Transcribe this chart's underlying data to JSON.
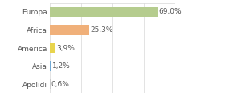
{
  "categories": [
    "Europa",
    "Africa",
    "America",
    "Asia",
    "Apolidi"
  ],
  "values": [
    69.0,
    25.3,
    3.9,
    1.2,
    0.6
  ],
  "labels": [
    "69,0%",
    "25,3%",
    "3,9%",
    "1,2%",
    "0,6%"
  ],
  "bar_colors": [
    "#b5cc8e",
    "#f0b07a",
    "#e8d44d",
    "#6fa8d4",
    "#cccccc"
  ],
  "background_color": "#ffffff",
  "xlim": [
    0,
    80
  ],
  "label_fontsize": 6.5,
  "tick_fontsize": 6.5,
  "bar_height": 0.55,
  "grid_color": "#d8d8d8",
  "text_color": "#555555"
}
